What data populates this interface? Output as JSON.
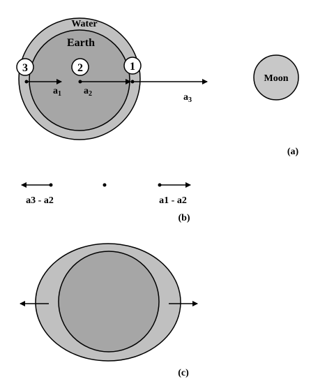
{
  "labels": {
    "water": "Water",
    "earth": "Earth",
    "moon": "Moon",
    "point_3": "3",
    "point_2": "2",
    "point_1": "1",
    "accel_1": "a",
    "accel_1_sub": "1",
    "accel_2": "a",
    "accel_2_sub": "2",
    "accel_3": "a",
    "accel_3_sub": "3",
    "rel_left": "a3 - a2",
    "rel_right": "a1 - a2"
  },
  "panels": {
    "a": "(a)",
    "b": "(b)",
    "c": "(c)"
  },
  "colors": {
    "water": "#c0c0c0",
    "earth": "#a6a6a6",
    "moon": "#c8c8c8",
    "ink": "#000000",
    "background": "#ffffff"
  }
}
